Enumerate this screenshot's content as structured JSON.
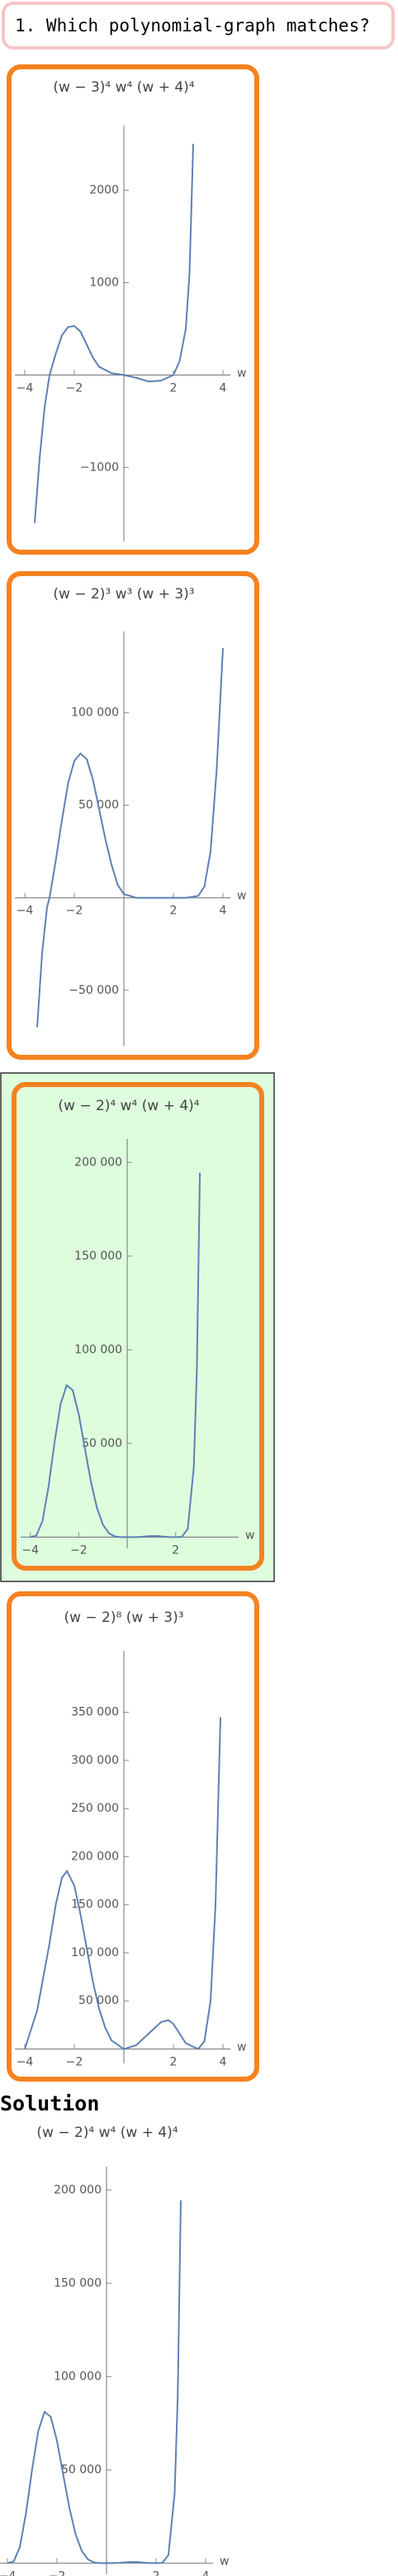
{
  "question": "1. Which polynomial-graph matches?",
  "solution_label": "Solution",
  "chart_data": [
    {
      "type": "line",
      "title": "(w − 3)⁴ w⁴ (w + 4)⁴",
      "x_label": "w",
      "color": "#5e81b5",
      "x": [
        -3.6,
        -3.4,
        -3.2,
        -3,
        -2.75,
        -2.5,
        -2.25,
        -2,
        -1.75,
        -1.5,
        -1.25,
        -1,
        -0.5,
        0,
        0.5,
        1,
        1.5,
        2,
        2.25,
        2.5,
        2.65,
        2.8
      ],
      "values": [
        -1600,
        -900,
        -350,
        0,
        230,
        430,
        520,
        530,
        470,
        330,
        190,
        90,
        20,
        0,
        -30,
        -70,
        -60,
        0,
        150,
        500,
        1100,
        2500
      ],
      "xlim": [
        -4.4,
        4.3
      ],
      "xticks": [
        {
          "value": -4,
          "label": "−4"
        },
        {
          "value": -2,
          "label": "−2"
        },
        2,
        4
      ],
      "ylim": [
        -1800,
        2700
      ],
      "yticks": [
        {
          "value": -1000,
          "label": "−1000"
        },
        1000,
        2000
      ]
    },
    {
      "type": "line",
      "title": "(w − 2)³ w³ (w + 3)³",
      "x_label": "w",
      "color": "#5e81b5",
      "x": [
        -3.5,
        -3.3,
        -3.1,
        -3,
        -2.75,
        -2.5,
        -2.25,
        -2,
        -1.75,
        -1.5,
        -1.25,
        -1,
        -0.75,
        -0.5,
        -0.25,
        0,
        0.5,
        1,
        1.5,
        2,
        2.5,
        3,
        3.25,
        3.5,
        3.75,
        4
      ],
      "values": [
        -70000,
        -30000,
        -5000,
        0,
        20000,
        42000,
        62000,
        74000,
        78000,
        75000,
        64000,
        48000,
        32000,
        18000,
        7000,
        2000,
        0,
        0,
        0,
        0,
        0,
        1000,
        6000,
        25000,
        70000,
        135000
      ],
      "xlim": [
        -4.4,
        4.3
      ],
      "xticks": [
        {
          "value": -4,
          "label": "−4"
        },
        {
          "value": -2,
          "label": "−2"
        },
        2,
        4
      ],
      "ylim": [
        -80000,
        144000
      ],
      "yticks": [
        {
          "value": -50000,
          "label": "−50 000"
        },
        {
          "value": 50000,
          "label": "50 000"
        },
        {
          "value": 100000,
          "label": "100 000"
        }
      ]
    },
    {
      "type": "line",
      "title": "(w − 2)⁴ w⁴ (w + 4)⁴",
      "x_label": "w",
      "color": "#5e81b5",
      "x": [
        -4,
        -3.75,
        -3.5,
        -3.25,
        -3,
        -2.75,
        -2.5,
        -2.25,
        -2,
        -1.75,
        -1.5,
        -1.25,
        -1,
        -0.75,
        -0.5,
        -0.25,
        0,
        0.25,
        0.5,
        0.75,
        1,
        1.25,
        1.5,
        1.75,
        2,
        2.25,
        2.5,
        2.75,
        2.875,
        3
      ],
      "values": [
        0,
        845,
        8582,
        26818,
        50625,
        71078,
        81093,
        78420,
        65536,
        47538,
        29676,
        15578,
        6561,
        2019,
        366,
        20,
        0,
        12,
        130,
        393,
        625,
        587,
        290,
        40,
        0,
        153,
        4358,
        37565,
        89472,
        194481
      ],
      "xlim": [
        -4.4,
        4.6
      ],
      "xticks": [
        {
          "value": -4,
          "label": "−4"
        },
        {
          "value": -2,
          "label": "−2"
        },
        2
      ],
      "ylim": [
        -6000,
        212500
      ],
      "yticks": [
        {
          "value": 50000,
          "label": "50 000"
        },
        {
          "value": 100000,
          "label": "100 000"
        },
        {
          "value": 150000,
          "label": "150 000"
        },
        {
          "value": 200000,
          "label": "200 000"
        }
      ]
    },
    {
      "type": "line",
      "title": "(w − 2)⁸ (w + 3)³",
      "x_label": "w",
      "color": "#5e81b5",
      "x": [
        -4,
        -3.5,
        -3,
        -2.75,
        -2.5,
        -2.3,
        -2,
        -1.75,
        -1.5,
        -1.25,
        -1,
        -0.75,
        -0.5,
        0,
        0.5,
        1,
        1.5,
        1.8,
        2,
        2.5,
        3,
        3.25,
        3.5,
        3.7,
        3.9
      ],
      "values": [
        0,
        40000,
        110000,
        150000,
        178000,
        185000,
        170000,
        140000,
        105000,
        70000,
        42000,
        22000,
        9000,
        0,
        4000,
        16000,
        28000,
        30000,
        26000,
        6000,
        0,
        8000,
        50000,
        150000,
        345000
      ],
      "xlim": [
        -4.4,
        4.3
      ],
      "xticks": [
        {
          "value": -4,
          "label": "−4"
        },
        {
          "value": -2,
          "label": "−2"
        },
        2,
        4
      ],
      "ylim": [
        -15000,
        414000
      ],
      "yticks": [
        {
          "value": 50000,
          "label": "50 000"
        },
        {
          "value": 100000,
          "label": "100 000"
        },
        {
          "value": 150000,
          "label": "150 000"
        },
        {
          "value": 200000,
          "label": "200 000"
        },
        {
          "value": 250000,
          "label": "250 000"
        },
        {
          "value": 300000,
          "label": "300 000"
        },
        {
          "value": 350000,
          "label": "350 000"
        }
      ]
    },
    {
      "type": "line",
      "title": "(w − 2)⁴ w⁴ (w + 4)⁴",
      "x_label": "w",
      "color": "#5e81b5",
      "x": [
        -4,
        -3.75,
        -3.5,
        -3.25,
        -3,
        -2.75,
        -2.5,
        -2.25,
        -2,
        -1.75,
        -1.5,
        -1.25,
        -1,
        -0.75,
        -0.5,
        -0.25,
        0,
        0.25,
        0.5,
        0.75,
        1,
        1.25,
        1.5,
        1.75,
        2,
        2.25,
        2.5,
        2.75,
        2.875,
        3
      ],
      "values": [
        0,
        845,
        8582,
        26818,
        50625,
        71078,
        81093,
        78420,
        65536,
        47538,
        29676,
        15578,
        6561,
        2019,
        366,
        20,
        0,
        12,
        130,
        393,
        625,
        587,
        290,
        40,
        0,
        153,
        4358,
        37565,
        89472,
        194481
      ],
      "xlim": [
        -4.3,
        4.3
      ],
      "xticks": [
        {
          "value": -4,
          "label": "−4"
        },
        {
          "value": -2,
          "label": "−2"
        },
        2,
        4
      ],
      "ylim": [
        -6000,
        212500
      ],
      "yticks": [
        {
          "value": 50000,
          "label": "50 000"
        },
        {
          "value": 100000,
          "label": "100 000"
        },
        {
          "value": 150000,
          "label": "150 000"
        },
        {
          "value": 200000,
          "label": "200 000"
        }
      ]
    }
  ]
}
